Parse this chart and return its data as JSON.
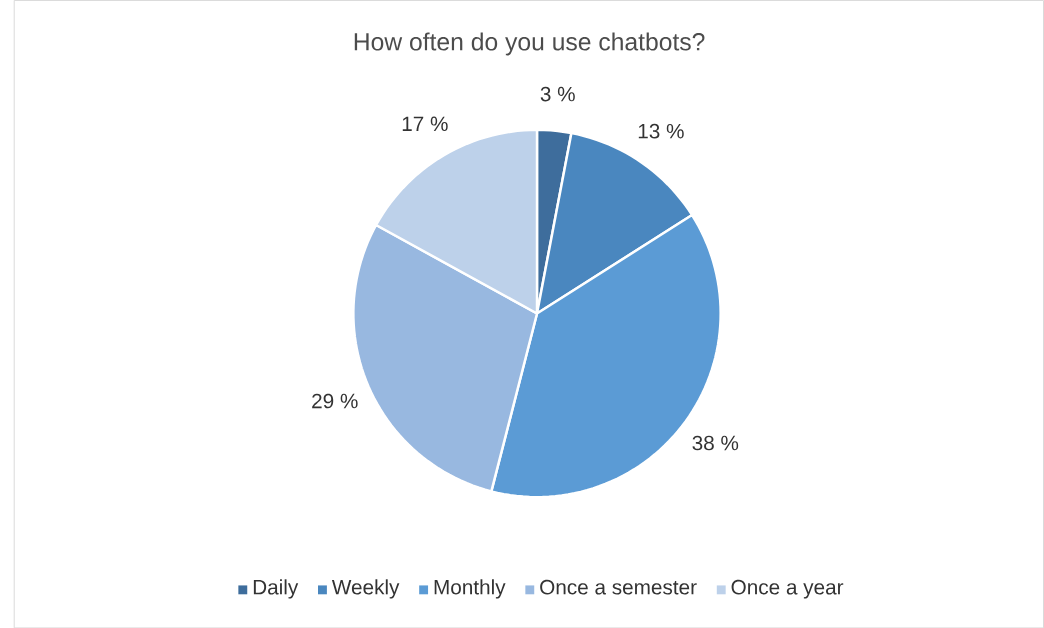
{
  "chart_data": {
    "type": "pie",
    "title": "How often do you use chatbots?",
    "categories": [
      "Daily",
      "Weekly",
      "Monthly",
      "Once a semester",
      "Once a year"
    ],
    "values": [
      3,
      13,
      38,
      29,
      17
    ],
    "value_labels": [
      "3 %",
      "13 %",
      "38 %",
      "29 %",
      "17 %"
    ],
    "colors": [
      "#3e6d9c",
      "#4a87bf",
      "#5b9bd5",
      "#98b8e0",
      "#bdd1ea"
    ],
    "legend": "bottom"
  }
}
